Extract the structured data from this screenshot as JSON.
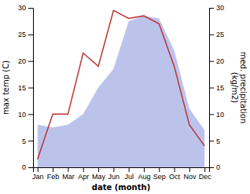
{
  "chart_data": {
    "type": "line",
    "categories": [
      "Jan",
      "Feb",
      "Mar",
      "Apr",
      "May",
      "Jun",
      "Jul",
      "Aug",
      "Sep",
      "Oct",
      "Nov",
      "Dec"
    ],
    "xlabel": "date (month)",
    "ylabel": "max temp (C)",
    "y2label": "med. precipitation\n(kg/m2)",
    "ylim": [
      0,
      30
    ],
    "yticks": [
      0,
      5,
      10,
      15,
      20,
      25,
      30
    ],
    "y2lim": [
      0,
      30
    ],
    "y2ticks": [
      0,
      5,
      10,
      15,
      20,
      25,
      30
    ],
    "grid": false,
    "series": [
      {
        "type": "area",
        "axis": "y2",
        "color": "#b0b8e8",
        "values": [
          8,
          7.5,
          8,
          10,
          15,
          18.5,
          27.5,
          28.5,
          28,
          22,
          11,
          7
        ]
      },
      {
        "type": "line",
        "color": "#bb3333",
        "values": [
          1.5,
          10,
          10,
          21.5,
          19,
          29.5,
          28,
          28.5,
          27,
          19,
          8,
          4
        ]
      }
    ]
  }
}
